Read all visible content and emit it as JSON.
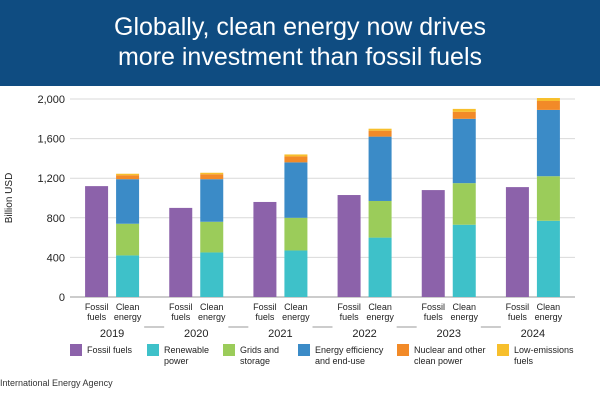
{
  "title": {
    "line1": "Globally, clean energy now drives",
    "line2": "more investment than fossil fuels"
  },
  "source": "International Energy Agency",
  "chart_data": {
    "type": "bar",
    "stacked": true,
    "ylabel": "Billion USD",
    "ylim": [
      0,
      2000
    ],
    "yticks": [
      "0",
      "400",
      "800",
      "1,200",
      "1,600",
      "2,000"
    ],
    "ytick_values": [
      0,
      400,
      800,
      1200,
      1600,
      2000
    ],
    "grid": true,
    "legend_position": "bottom",
    "years": [
      "2019",
      "2020",
      "2021",
      "2022",
      "2023",
      "2024"
    ],
    "bar_labels": {
      "fossil": [
        "Fossil",
        "fuels"
      ],
      "clean": [
        "Clean",
        "energy"
      ]
    },
    "fossil_fuels": [
      1120,
      900,
      960,
      1030,
      1080,
      1110
    ],
    "clean_energy_series": [
      {
        "name": "Renewable power",
        "legend": [
          "Renewable",
          "power"
        ],
        "color": "#3ec1c9",
        "values": [
          420,
          450,
          470,
          600,
          730,
          770
        ]
      },
      {
        "name": "Grids and storage",
        "legend": [
          "Grids and",
          "storage"
        ],
        "color": "#9bcc5a",
        "values": [
          320,
          310,
          330,
          370,
          420,
          450
        ]
      },
      {
        "name": "Energy efficiency and end-use",
        "legend": [
          "Energy efficiency",
          "and end-use"
        ],
        "color": "#3b8bc7",
        "values": [
          450,
          430,
          560,
          650,
          650,
          670
        ]
      },
      {
        "name": "Nuclear and other clean power",
        "legend": [
          "Nuclear and other",
          "clean power"
        ],
        "color": "#f28a28",
        "values": [
          40,
          50,
          60,
          60,
          70,
          90
        ]
      },
      {
        "name": "Low-emissions fuels",
        "legend": [
          "Low-emissions",
          "fuels"
        ],
        "color": "#f7bf2c",
        "values": [
          15,
          15,
          20,
          20,
          30,
          30
        ]
      }
    ],
    "fossil_series": {
      "name": "Fossil fuels",
      "legend": [
        "Fossil fuels"
      ],
      "color": "#8c62aa"
    }
  }
}
